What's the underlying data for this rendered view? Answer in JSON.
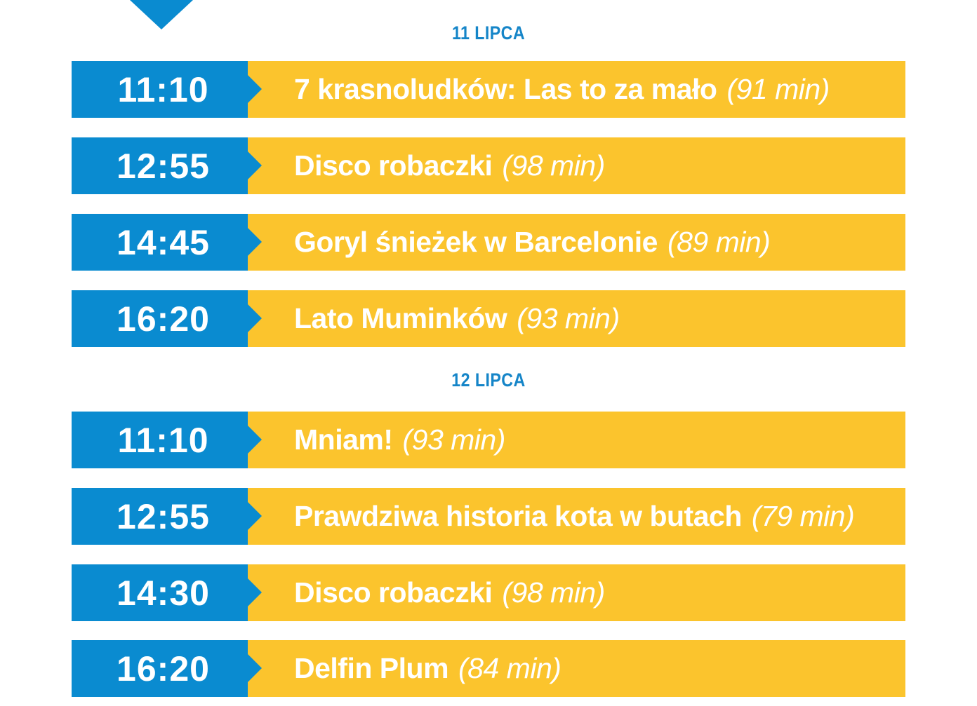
{
  "colors": {
    "blue": "#0a8bd0",
    "yellow": "#fbc42d",
    "heading": "#1585c8",
    "text": "#ffffff"
  },
  "days": [
    {
      "heading": "11 LIPCA",
      "screenings": [
        {
          "time": "11:10",
          "title": "7 krasnoludków: Las to za mało",
          "duration": "(91 min)"
        },
        {
          "time": "12:55",
          "title": "Disco robaczki",
          "duration": "(98 min)"
        },
        {
          "time": "14:45",
          "title": "Goryl śnieżek w Barcelonie",
          "duration": "(89 min)"
        },
        {
          "time": "16:20",
          "title": "Lato Muminków",
          "duration": "(93 min)"
        }
      ]
    },
    {
      "heading": "12 LIPCA",
      "screenings": [
        {
          "time": "11:10",
          "title": "Mniam!",
          "duration": "(93 min)"
        },
        {
          "time": "12:55",
          "title": "Prawdziwa historia kota w butach",
          "duration": "(79 min)"
        },
        {
          "time": "14:30",
          "title": "Disco robaczki",
          "duration": "(98 min)"
        },
        {
          "time": "16:20",
          "title": "Delfin Plum",
          "duration": "(84 min)"
        }
      ]
    }
  ]
}
